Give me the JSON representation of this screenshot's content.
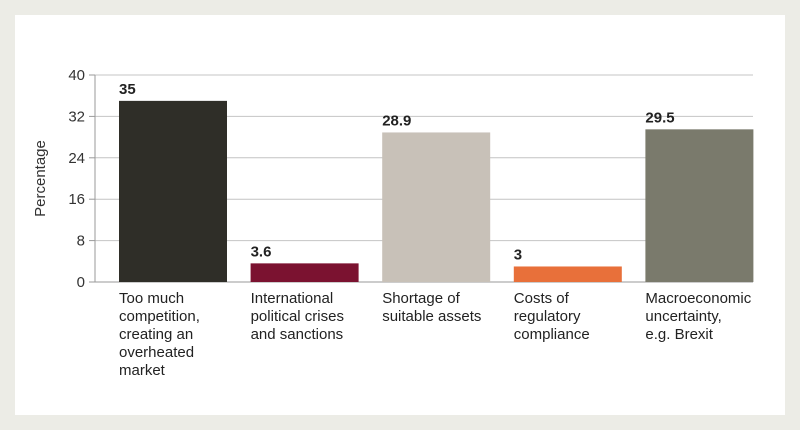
{
  "chart_data": {
    "type": "bar",
    "title": "",
    "xlabel": "",
    "ylabel": "Percentage",
    "ylim": [
      0,
      40
    ],
    "yticks": [
      0,
      8,
      16,
      24,
      32,
      40
    ],
    "grid": true,
    "categories": [
      [
        "Too much",
        "competition,",
        "creating an",
        "overheated",
        "market"
      ],
      [
        "International",
        "political crises",
        "and sanctions"
      ],
      [
        "Shortage of",
        "suitable assets"
      ],
      [
        "Costs of",
        "regulatory",
        "compliance"
      ],
      [
        "Macroeconomic",
        "uncertainty,",
        "e.g. Brexit"
      ]
    ],
    "values": [
      35,
      3.6,
      28.9,
      3,
      29.5
    ],
    "value_labels": [
      "35",
      "3.6",
      "28.9",
      "3",
      "29.5"
    ],
    "colors": [
      "#2f2e28",
      "#7b1230",
      "#c8c1b8",
      "#e8703a",
      "#7a7a6c"
    ]
  }
}
